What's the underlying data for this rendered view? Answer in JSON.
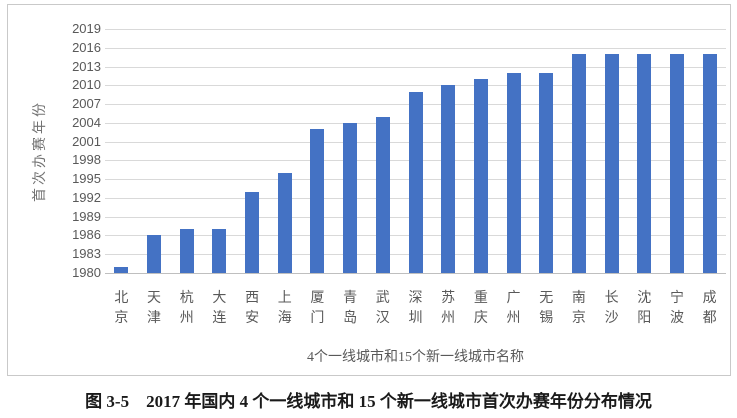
{
  "figure": {
    "caption": "图 3-5　2017 年国内 4 个一线城市和 15 个新一线城市首次办赛年份分布情况"
  },
  "chart_data": {
    "type": "bar",
    "title": "",
    "categories": [
      "北京",
      "天津",
      "杭州",
      "大连",
      "西安",
      "上海",
      "厦门",
      "青岛",
      "武汉",
      "深圳",
      "苏州",
      "重庆",
      "广州",
      "无锡",
      "南京",
      "长沙",
      "沈阳",
      "宁波",
      "成都"
    ],
    "values": [
      1981,
      1986,
      1987,
      1987,
      1993,
      1996,
      2003,
      2004,
      2005,
      2009,
      2010,
      2011,
      2012,
      2012,
      2015,
      2015,
      2015,
      2015,
      2015
    ],
    "xlabel": "4个一线城市和15个新一线城市名称",
    "ylabel": "首次办赛年份",
    "ylim": [
      1980,
      2019
    ],
    "yticks": [
      1980,
      1983,
      1986,
      1989,
      1992,
      1995,
      1998,
      2001,
      2004,
      2007,
      2010,
      2013,
      2016,
      2019
    ],
    "grid": true,
    "legend_position": "none",
    "bar_color": "#4472C4",
    "gridline_color": "#d9d9d9",
    "axis_line_color": "#bfbfbf",
    "tick_label_color": "#595959"
  }
}
